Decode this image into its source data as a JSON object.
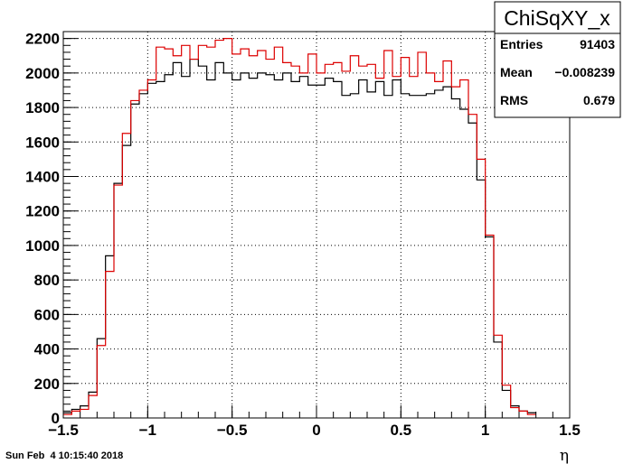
{
  "chart_data": {
    "type": "histogram",
    "xlabel": "η",
    "ylabel": "",
    "xlim": [
      -1.5,
      1.5
    ],
    "ylim": [
      0,
      2240
    ],
    "grid": true,
    "x_ticks": [
      -1.5,
      -1,
      -0.5,
      0,
      0.5,
      1,
      1.5
    ],
    "x_tick_labels": [
      "−1.5",
      "−1",
      "−0.5",
      "0",
      "0.5",
      "1",
      "1.5"
    ],
    "y_ticks": [
      0,
      200,
      400,
      600,
      800,
      1000,
      1200,
      1400,
      1600,
      1800,
      2000,
      2200
    ],
    "y_tick_labels": [
      "0",
      "200",
      "400",
      "600",
      "800",
      "1000",
      "1200",
      "1400",
      "1600",
      "1800",
      "2000",
      "2200"
    ],
    "bin_edges_start": -1.5,
    "bin_width": 0.05,
    "series": [
      {
        "color": "#000000",
        "values": [
          30,
          50,
          70,
          150,
          460,
          940,
          1360,
          1580,
          1820,
          1880,
          1940,
          1950,
          1990,
          2060,
          1980,
          2080,
          2040,
          1960,
          2060,
          2000,
          1960,
          2000,
          1970,
          2000,
          1990,
          1960,
          2000,
          1950,
          1980,
          1930,
          1930,
          1970,
          1950,
          1870,
          1880,
          1960,
          1890,
          1950,
          1870,
          1960,
          1880,
          1870,
          1870,
          1880,
          1900,
          1920,
          1850,
          1790,
          1710,
          1380,
          1050,
          440,
          160,
          70,
          40,
          30
        ]
      },
      {
        "color": "#dd0000",
        "values": [
          20,
          40,
          50,
          130,
          420,
          850,
          1350,
          1650,
          1840,
          1900,
          1960,
          2150,
          2140,
          2100,
          2160,
          2080,
          2160,
          2150,
          2190,
          2200,
          2110,
          2140,
          2100,
          2130,
          2080,
          2150,
          2060,
          2040,
          2000,
          2110,
          2000,
          2050,
          2060,
          2010,
          2100,
          2040,
          2050,
          1970,
          2130,
          1980,
          2090,
          1980,
          2120,
          2000,
          1950,
          2070,
          1920,
          1960,
          1760,
          1500,
          1060,
          480,
          190,
          60,
          40,
          20
        ]
      }
    ]
  },
  "stats_box": {
    "title": "ChiSqXY_x",
    "rows": [
      {
        "label": "Entries",
        "value": "91403"
      },
      {
        "label": "Mean",
        "value": "−0.008239"
      },
      {
        "label": "RMS",
        "value": "0.679"
      }
    ]
  },
  "footer": {
    "timestamp": "Sun Feb  4 10:15:40 2018"
  }
}
